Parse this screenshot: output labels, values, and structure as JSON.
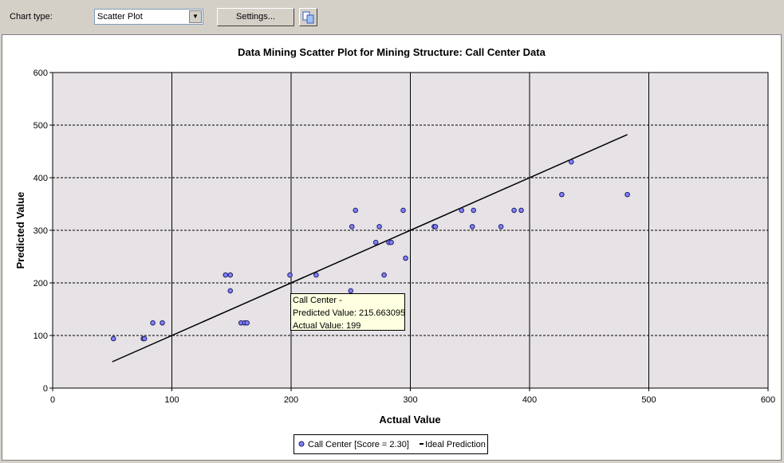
{
  "toolbar": {
    "chart_type_label": "Chart type:",
    "chart_type_value": "Scatter Plot",
    "settings_label": "Settings...",
    "copy_icon": "copy-icon"
  },
  "chart_data": {
    "type": "scatter",
    "title": "Data Mining Scatter Plot for Mining Structure: Call Center Data",
    "xlabel": "Actual Value",
    "ylabel": "Predicted Value",
    "xlim": [
      0,
      600
    ],
    "ylim": [
      0,
      600
    ],
    "xticks": [
      0,
      100,
      200,
      300,
      400,
      500,
      600
    ],
    "yticks": [
      0,
      100,
      200,
      300,
      400,
      500,
      600
    ],
    "grid": true,
    "legend_placement": "bottom",
    "series": [
      {
        "name": "Call Center [Score = 2.30]",
        "color": "#8080ff",
        "points": [
          [
            51,
            94
          ],
          [
            76,
            94
          ],
          [
            77,
            94
          ],
          [
            84,
            124
          ],
          [
            92,
            124
          ],
          [
            145,
            215
          ],
          [
            149,
            215
          ],
          [
            149,
            185
          ],
          [
            158,
            124
          ],
          [
            161,
            124
          ],
          [
            163,
            124
          ],
          [
            199,
            215
          ],
          [
            221,
            215
          ],
          [
            250,
            185
          ],
          [
            251,
            307
          ],
          [
            254,
            338
          ],
          [
            271,
            277
          ],
          [
            274,
            307
          ],
          [
            278,
            215
          ],
          [
            282,
            277
          ],
          [
            284,
            277
          ],
          [
            294,
            338
          ],
          [
            296,
            247
          ],
          [
            320,
            307
          ],
          [
            321,
            307
          ],
          [
            343,
            338
          ],
          [
            352,
            307
          ],
          [
            353,
            338
          ],
          [
            376,
            307
          ],
          [
            387,
            338
          ],
          [
            393,
            338
          ],
          [
            427,
            368
          ],
          [
            435,
            430
          ],
          [
            482,
            368
          ]
        ]
      }
    ],
    "ideal": {
      "name": "Ideal Prediction",
      "from": [
        50,
        50
      ],
      "to": [
        482,
        482
      ]
    },
    "tooltip": {
      "line1": "Call Center -",
      "line2": "Predicted Value: 215.663095",
      "line3": "Actual Value: 199"
    }
  }
}
